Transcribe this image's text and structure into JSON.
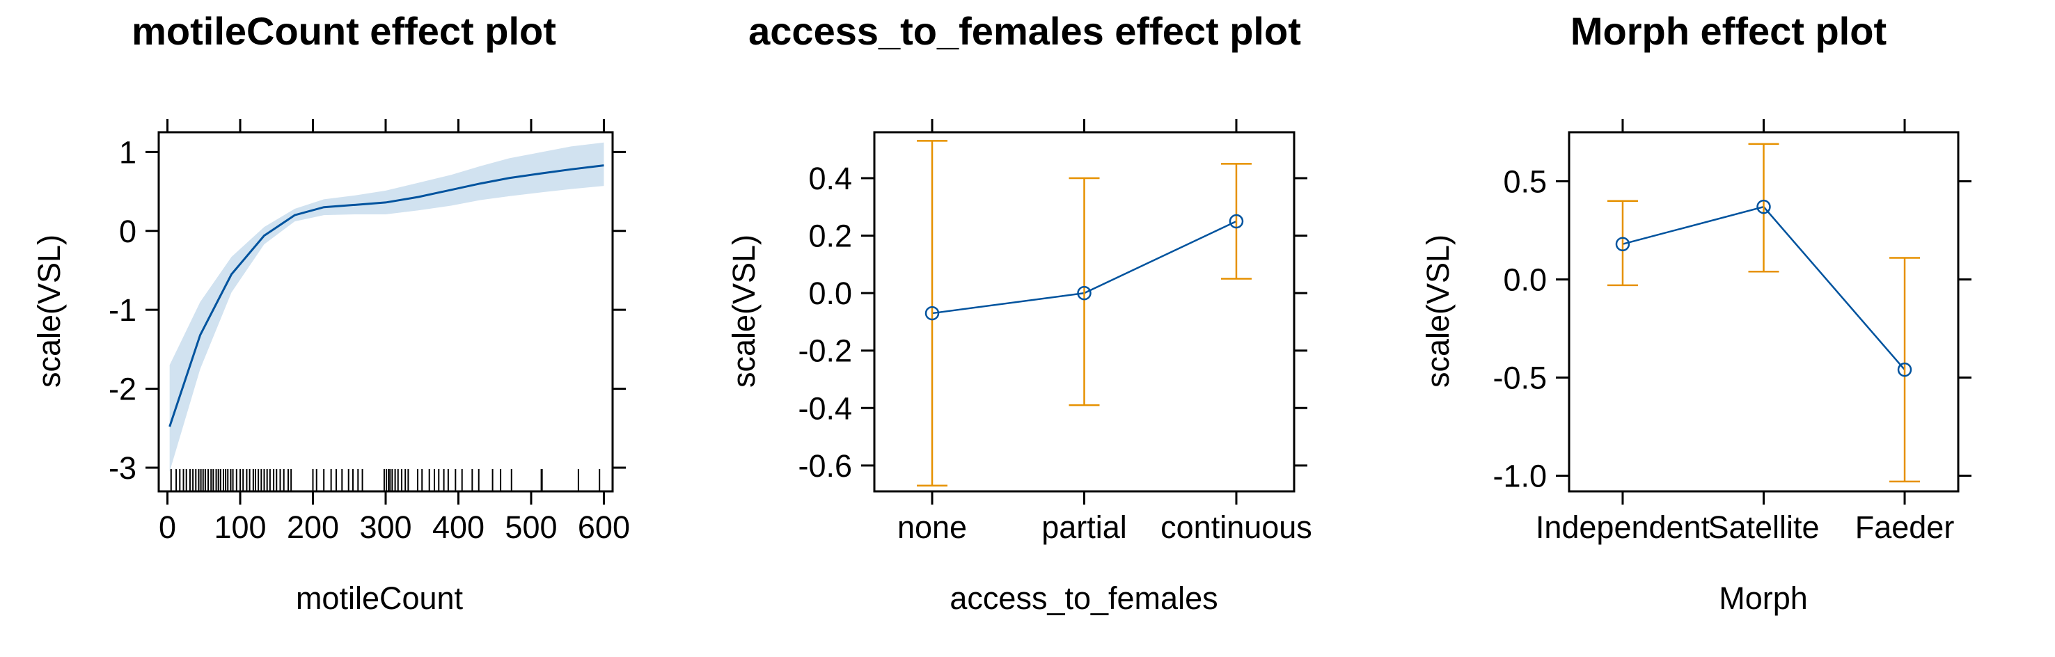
{
  "chart_data": [
    {
      "type": "line",
      "title": "motileCount effect plot",
      "xlabel": "motileCount",
      "ylabel": "scale(VSL)",
      "xlim": [
        -12,
        612
      ],
      "ylim": [
        -3.3,
        1.25
      ],
      "xticks": [
        0,
        100,
        200,
        300,
        400,
        500,
        600
      ],
      "xtick_labels": [
        "0",
        "100",
        "200",
        "300",
        "400",
        "500",
        "600"
      ],
      "yticks": [
        1,
        0,
        -1,
        -2,
        -3
      ],
      "ytick_labels": [
        "1",
        "0",
        "-1",
        "-2",
        "-3"
      ],
      "x": [
        3,
        45,
        88,
        133,
        175,
        215,
        258,
        300,
        345,
        390,
        430,
        470,
        515,
        555,
        600
      ],
      "fit": [
        -2.48,
        -1.32,
        -0.55,
        -0.06,
        0.2,
        0.3,
        0.33,
        0.36,
        0.43,
        0.52,
        0.6,
        0.67,
        0.73,
        0.78,
        0.83
      ],
      "lower": [
        -3.05,
        -1.75,
        -0.78,
        -0.17,
        0.12,
        0.2,
        0.21,
        0.21,
        0.26,
        0.32,
        0.39,
        0.44,
        0.49,
        0.53,
        0.57
      ],
      "upper": [
        -1.7,
        -0.9,
        -0.33,
        0.05,
        0.28,
        0.4,
        0.45,
        0.51,
        0.61,
        0.71,
        0.82,
        0.92,
        1.0,
        1.07,
        1.12
      ],
      "rug": [
        5,
        12,
        17,
        22,
        26,
        31,
        35,
        39,
        43,
        46,
        49,
        52,
        56,
        60,
        63,
        67,
        70,
        73,
        77,
        80,
        83,
        87,
        90,
        95,
        100,
        104,
        109,
        113,
        118,
        121,
        125,
        129,
        133,
        137,
        141,
        146,
        150,
        155,
        160,
        166,
        170,
        200,
        205,
        215,
        225,
        232,
        240,
        249,
        255,
        262,
        268,
        298,
        301,
        304,
        306,
        309,
        313,
        317,
        322,
        327,
        331,
        344,
        350,
        360,
        367,
        373,
        380,
        386,
        396,
        405,
        419,
        428,
        447,
        458,
        473,
        514,
        515,
        565,
        594
      ],
      "line_color": "#00539e",
      "band_color": "#d1e2f0"
    },
    {
      "type": "errorbar",
      "title": "access_to_females effect plot",
      "xlabel": "access_to_females",
      "ylabel": "scale(VSL)",
      "ylim": [
        -0.69,
        0.56
      ],
      "yticks": [
        0.4,
        0.2,
        0.0,
        -0.2,
        -0.4,
        -0.6
      ],
      "ytick_labels": [
        "0.4",
        "0.2",
        "0.0",
        "-0.2",
        "-0.4",
        "-0.6"
      ],
      "categories": [
        "none",
        "partial",
        "continuous"
      ],
      "fit": [
        -0.07,
        0.0,
        0.25
      ],
      "lower": [
        -0.67,
        -0.39,
        0.05
      ],
      "upper": [
        0.53,
        0.4,
        0.45
      ],
      "line_color": "#00539e",
      "bar_color": "#e69100"
    },
    {
      "type": "errorbar",
      "title": "Morph effect plot",
      "xlabel": "Morph",
      "ylabel": "scale(VSL)",
      "ylim": [
        -1.08,
        0.75
      ],
      "yticks": [
        0.5,
        0.0,
        -0.5,
        -1.0
      ],
      "ytick_labels": [
        "0.5",
        "0.0",
        "-0.5",
        "-1.0"
      ],
      "categories": [
        "Independent",
        "Satellite",
        "Faeder"
      ],
      "fit": [
        0.18,
        0.37,
        -0.46
      ],
      "lower": [
        -0.03,
        0.04,
        -1.03
      ],
      "upper": [
        0.4,
        0.69,
        0.11
      ],
      "line_color": "#00539e",
      "bar_color": "#e69100"
    }
  ]
}
